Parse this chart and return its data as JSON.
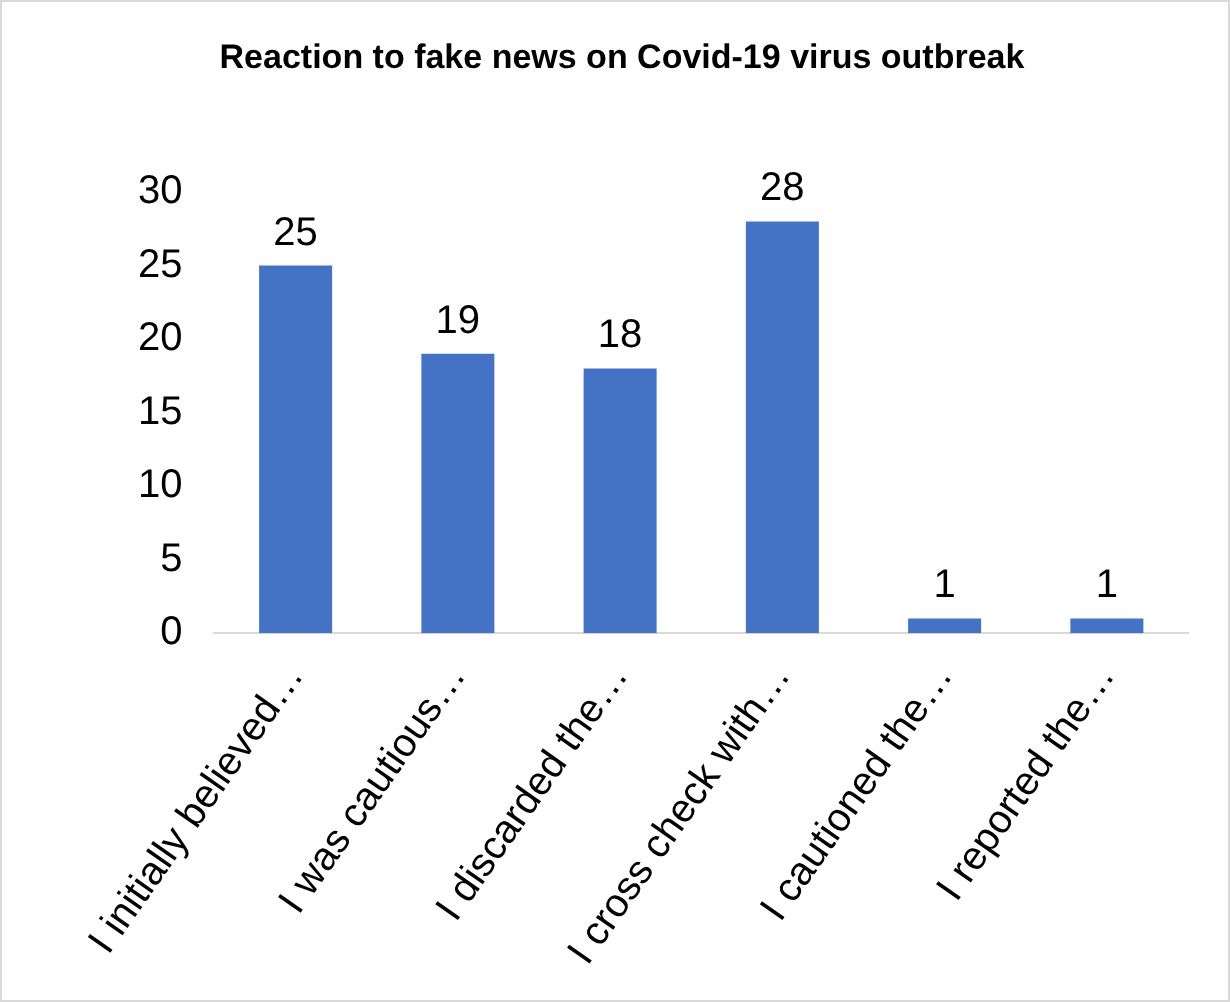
{
  "chart_data": {
    "type": "bar",
    "title": "Reaction to fake news on Covid-19 virus outbreak",
    "categories": [
      "I initially believed…",
      "I was cautious…",
      "I discarded the…",
      "I cross check with…",
      "I cautioned the…",
      "I reported the…"
    ],
    "values": [
      25,
      19,
      18,
      28,
      1,
      1
    ],
    "color": "#4472c4",
    "ylim": [
      0,
      30
    ],
    "yticks": [
      0,
      5,
      10,
      15,
      20,
      25,
      30
    ],
    "grid": false,
    "legend": false,
    "data_labels": true
  }
}
